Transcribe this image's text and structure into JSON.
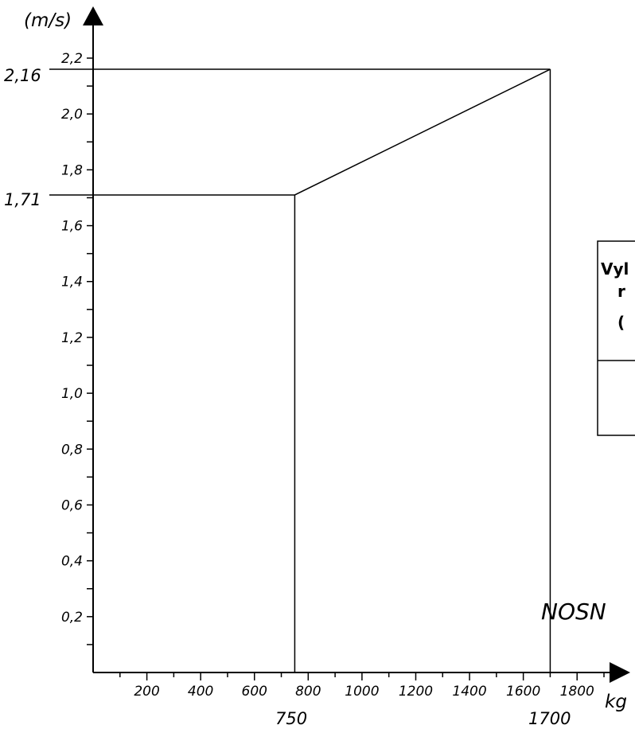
{
  "chart_data": {
    "type": "line",
    "y_unit": "(m/s)",
    "x_unit": "kg",
    "xlim": [
      0,
      1900
    ],
    "ylim": [
      0,
      2.2
    ],
    "x_ticks": [
      "200",
      "400",
      "600",
      "800",
      "1000",
      "1200",
      "1400",
      "1600",
      "1800"
    ],
    "y_ticks": [
      "0,2",
      "0,4",
      "0,6",
      "0,8",
      "1,0",
      "1,2",
      "1,4",
      "1,6",
      "1,8",
      "2,0",
      "2,2"
    ],
    "series": [
      {
        "x": [
          0,
          750,
          1700
        ],
        "y": [
          1.71,
          1.71,
          2.16
        ]
      }
    ],
    "markers": {
      "x_750": "750",
      "x_1700": "1700",
      "y_171": "1,71",
      "y_216": "2,16"
    },
    "caption": "NOSN",
    "legend_box": {
      "line1": "Vyl",
      "line2": "r",
      "line3": "("
    }
  }
}
